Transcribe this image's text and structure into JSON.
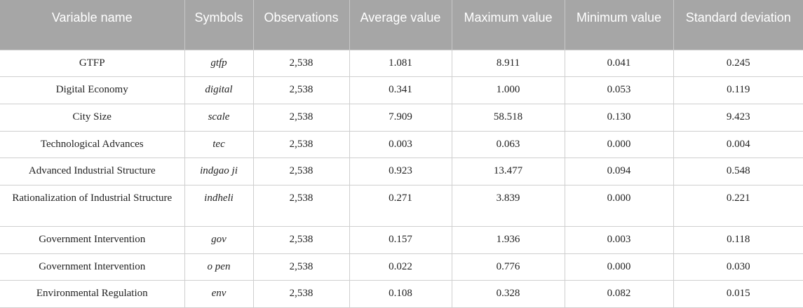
{
  "headers": [
    "Variable name",
    "Symbols",
    "Observations",
    "Average value",
    "Maximum value",
    "Minimum value",
    "Standard deviation"
  ],
  "rows": [
    {
      "name": "GTFP",
      "symbol": "gtfp",
      "obs": "2,538",
      "avg": "1.081",
      "max": "8.911",
      "min": "0.041",
      "sd": "0.245"
    },
    {
      "name": "Digital Economy",
      "symbol": "digital",
      "obs": "2,538",
      "avg": "0.341",
      "max": "1.000",
      "min": "0.053",
      "sd": "0.119"
    },
    {
      "name": "City Size",
      "symbol": "scale",
      "obs": "2,538",
      "avg": "7.909",
      "max": "58.518",
      "min": "0.130",
      "sd": "9.423"
    },
    {
      "name": "Technological Advances",
      "symbol": "tec",
      "obs": "2,538",
      "avg": "0.003",
      "max": "0.063",
      "min": "0.000",
      "sd": "0.004"
    },
    {
      "name": "Advanced Industrial Structure",
      "symbol": "indgao ji",
      "obs": "2,538",
      "avg": "0.923",
      "max": "13.477",
      "min": "0.094",
      "sd": "0.548"
    },
    {
      "name": "Rationalization of Industrial Structure",
      "symbol": "indheli",
      "obs": "2,538",
      "avg": "0.271",
      "max": "3.839",
      "min": "0.000",
      "sd": "0.221"
    },
    {
      "name": "Government Intervention",
      "symbol": "gov",
      "obs": "2,538",
      "avg": "0.157",
      "max": "1.936",
      "min": "0.003",
      "sd": "0.118"
    },
    {
      "name": "Government Intervention",
      "symbol": "o pen",
      "obs": "2,538",
      "avg": "0.022",
      "max": "0.776",
      "min": "0.000",
      "sd": "0.030"
    },
    {
      "name": "Environmental Regulation",
      "symbol": "env",
      "obs": "2,538",
      "avg": "0.108",
      "max": "0.328",
      "min": "0.082",
      "sd": "0.015"
    }
  ]
}
